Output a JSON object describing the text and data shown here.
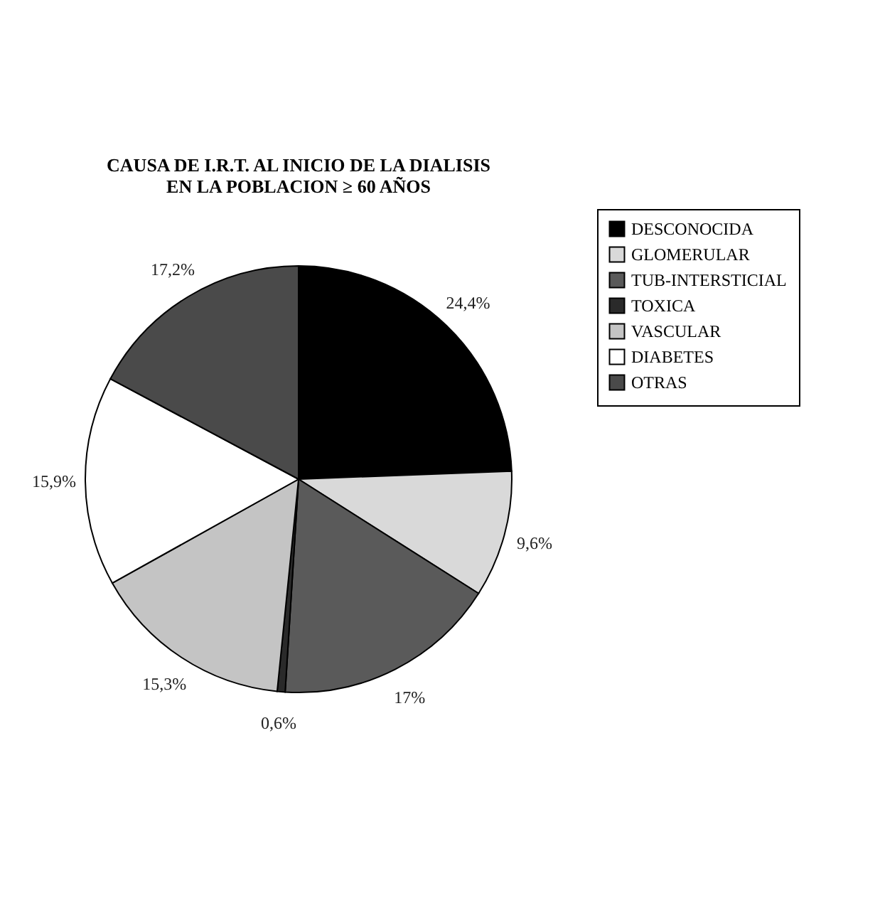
{
  "chart_data": {
    "type": "pie",
    "title": "CAUSA DE I.R.T. AL INICIO DE LA DIALISIS\nEN LA POBLACION ≥ 60 AÑOS",
    "categories": [
      "DESCONOCIDA",
      "GLOMERULAR",
      "TUB-INTERSTICIAL",
      "TOXICA",
      "VASCULAR",
      "DIABETES",
      "OTRAS"
    ],
    "values": [
      24.4,
      9.6,
      17,
      0.6,
      15.3,
      15.9,
      17.2
    ],
    "value_labels": [
      "24,4%",
      "9,6%",
      "17%",
      "0,6%",
      "15,3%",
      "15,9%",
      "17,2%"
    ],
    "colors": [
      "#000000",
      "#d9d9d9",
      "#5a5a5a",
      "#2a2a2a",
      "#c4c4c4",
      "#ffffff",
      "#4a4a4a"
    ],
    "legend": "right"
  }
}
